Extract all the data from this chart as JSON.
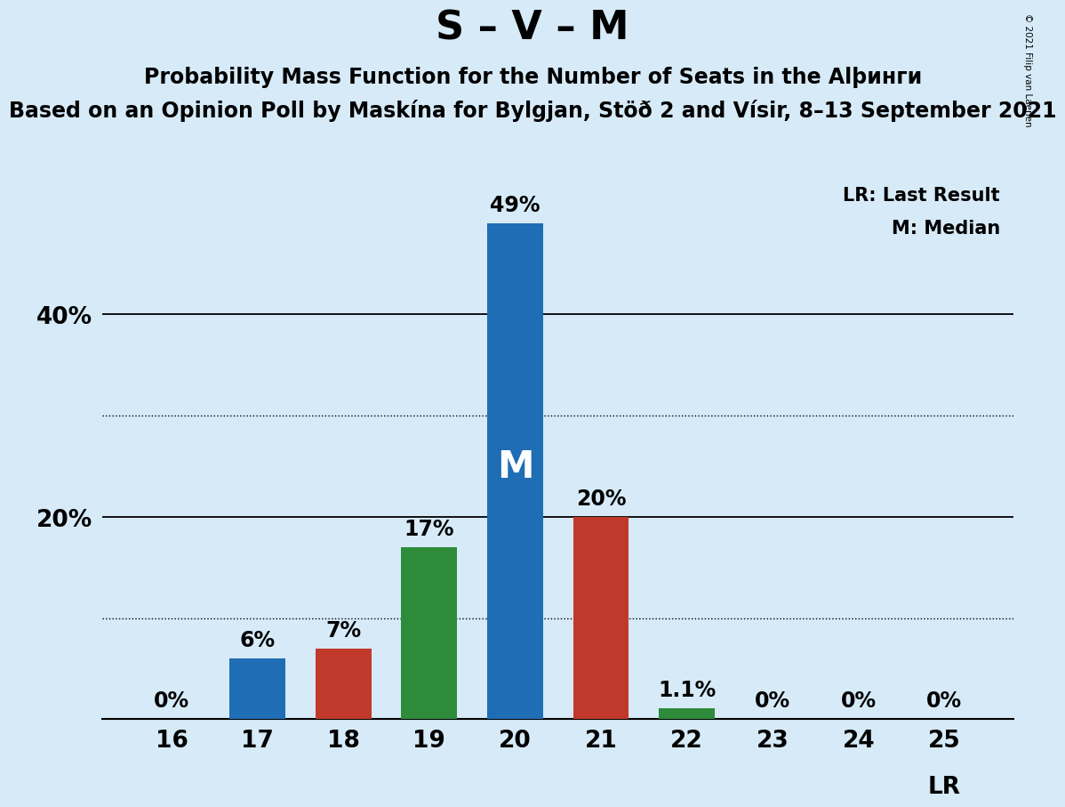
{
  "title": "S – V – M",
  "subtitle1": "Probability Mass Function for the Number of Seats in the Alþинги",
  "subtitle2": "Based on an Opinion Poll by Maskína for Bylgjan, Stöð 2 and Vísir, 8–13 September 2021",
  "copyright": "© 2021 Filip van Laenen",
  "categories": [
    16,
    17,
    18,
    19,
    20,
    21,
    22,
    23,
    24,
    25
  ],
  "values": [
    0,
    6,
    7,
    17,
    49,
    20,
    1.1,
    0,
    0,
    0
  ],
  "labels": [
    "0%",
    "6%",
    "7%",
    "17%",
    "49%",
    "20%",
    "1.1%",
    "0%",
    "0%",
    "0%"
  ],
  "colors": [
    "#1f6db5",
    "#1f6db5",
    "#c0392b",
    "#2e8b3a",
    "#1f6db5",
    "#c0392b",
    "#2e8b3a",
    "#1f6db5",
    "#1f6db5",
    "#1f6db5"
  ],
  "median_bar": 20,
  "background_color": "#d6eaf8",
  "ylim": [
    0,
    54
  ],
  "solid_yticks": [
    20,
    40
  ],
  "dotted_yticks": [
    10,
    30
  ],
  "legend_lr": "LR: Last Result",
  "legend_m": "M: Median",
  "title_fontsize": 32,
  "subtitle1_fontsize": 17,
  "subtitle2_fontsize": 17,
  "label_fontsize": 17,
  "tick_fontsize": 19,
  "legend_fontsize": 15,
  "bar_width": 0.65
}
